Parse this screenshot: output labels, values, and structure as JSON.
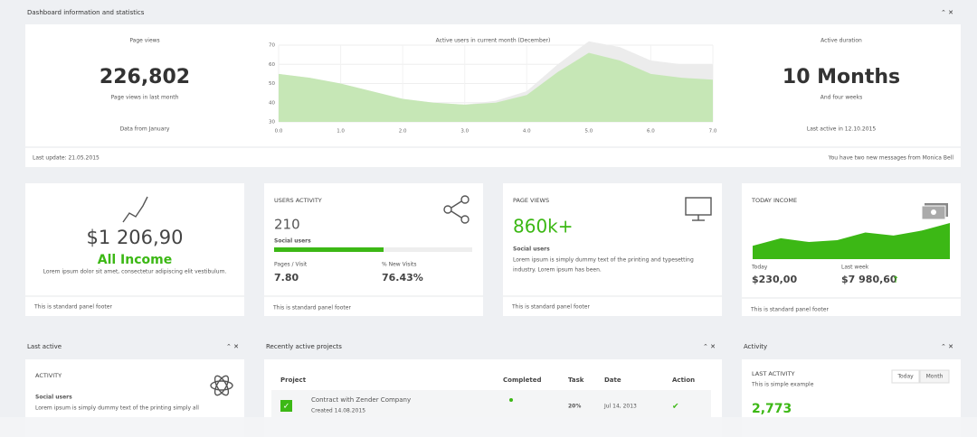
{
  "header": {
    "title": "Dashboard information and statistics"
  },
  "stats": {
    "left": {
      "label": "Page views",
      "value": "226,802",
      "caption": "Page views in last month",
      "note": "Data from January"
    },
    "chart": {
      "type": "area",
      "title": "Active users in current month (December)",
      "x": [
        0,
        0.5,
        1,
        1.5,
        2,
        2.5,
        3,
        3.5,
        4,
        4.5,
        5,
        5.5,
        6,
        6.5,
        7
      ],
      "series": [
        {
          "color": "#ececec",
          "values": [
            55,
            53,
            50,
            46,
            42,
            40,
            39,
            41,
            46,
            60,
            72,
            69,
            62,
            60,
            60
          ]
        },
        {
          "color": "#c6e7b6",
          "values": [
            55,
            53,
            50,
            46,
            42,
            40,
            39,
            40,
            44,
            56,
            66,
            62,
            55,
            53,
            52
          ]
        }
      ],
      "xlim": [
        0,
        7
      ],
      "ylim": [
        30,
        70
      ],
      "xticks": [
        {
          "value": 0,
          "label": "0.0"
        },
        {
          "value": 1,
          "label": "1.0"
        },
        {
          "value": 2,
          "label": "2.0"
        },
        {
          "value": 3,
          "label": "3.0"
        },
        {
          "value": 4,
          "label": "4.0"
        },
        {
          "value": 5,
          "label": "5.0"
        },
        {
          "value": 6,
          "label": "6.0"
        },
        {
          "value": 7,
          "label": "7.0"
        }
      ],
      "yticks": [
        30,
        40,
        50,
        60,
        70
      ],
      "grid": true
    },
    "right": {
      "label": "Active duration",
      "value": "10 Months",
      "caption": "And four weeks",
      "note": "Last active in 12.10.2015"
    },
    "footer_left": "Last update: 21.05.2015",
    "footer_right": "You have two new messages from Monica Bell"
  },
  "cards": [
    {
      "amount": "$1 206,90",
      "label": "All Income",
      "text": "Lorem ipsum dolor sit amet, consectetur adipiscing elit vestibulum.",
      "footer": "This is standard panel footer"
    },
    {
      "title": "USERS ACTIVITY",
      "value": "210",
      "label": "Social users",
      "stat1_label": "Pages / Visit",
      "stat1_value": "7.80",
      "stat2_label": "% New Visits",
      "stat2_value": "76.43%",
      "footer": "This is standard panel footer"
    },
    {
      "title": "PAGE VIEWS",
      "value": "860k+",
      "label": "Social users",
      "text": [
        "Lorem ipsum is simply dummy text of the printing and typesetting",
        "industry. Lorem ipsum has been."
      ],
      "footer": "This is standard panel footer"
    },
    {
      "title": "TODAY INCOME",
      "sparkline": {
        "color": "#3cb815",
        "values": [
          35,
          55,
          45,
          50,
          70,
          62,
          75,
          95
        ]
      },
      "today_label": "Today",
      "today_value": "$230,00",
      "week_label": "Last week",
      "week_value": "$7 980,60",
      "footer": "This is standard panel footer"
    }
  ],
  "panels": {
    "last_active": {
      "title": "Last active",
      "heading": "ACTIVITY",
      "label": "Social users",
      "text": "Lorem ipsum is simply dummy text of the printing simply all"
    },
    "projects": {
      "title": "Recently active projects",
      "columns": [
        "Project",
        "Completed",
        "Task",
        "Date",
        "Action"
      ],
      "rows": [
        {
          "project": "Contract with Zender Company",
          "created": "Created 14.08.2015",
          "task": "20%",
          "date": "Jul 14, 2013"
        }
      ]
    },
    "activity": {
      "title": "Activity",
      "heading": "LAST ACTIVITY",
      "subtitle": "This is simple example",
      "buttons": [
        "Today",
        "Month"
      ],
      "value": "2,773"
    }
  }
}
